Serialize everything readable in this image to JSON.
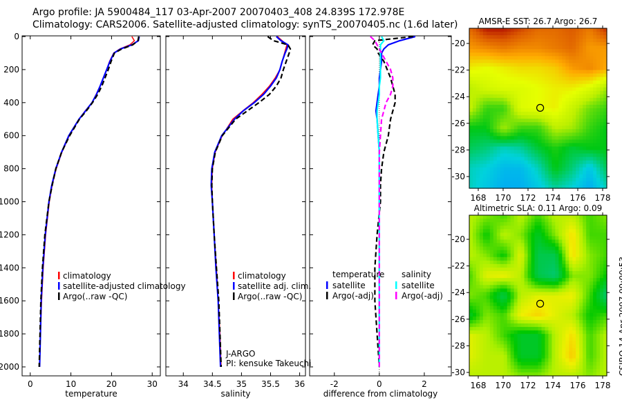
{
  "header": {
    "line1": "Argo profile: JA 5900484_117 03-Apr-2007 20070403_408 24.839S 172.978E",
    "line2": "Climatology: CARS2006. Satellite-adjusted climatology: synTS_20070405.nc (1.6d later)"
  },
  "colors": {
    "climatology": "#ff0000",
    "satellite": "#0000ff",
    "argo": "#000000",
    "sal_satellite": "#00ffff",
    "sal_argo": "#ff00ff"
  },
  "credit": {
    "project": "J-ARGO",
    "pi": "PI: kensuke Takeuchi",
    "footer": "CSIRO 14-Apr-2007 09:00:53"
  },
  "chart_data": [
    {
      "type": "line",
      "id": "temperature",
      "xlabel": "temperature",
      "ylabel": "",
      "xlim": [
        -2,
        32
      ],
      "ylim": [
        2050,
        0
      ],
      "xticks": [
        0,
        10,
        20,
        30
      ],
      "yticks": [
        0,
        200,
        400,
        600,
        800,
        1000,
        1200,
        1400,
        1600,
        1800,
        2000
      ],
      "depth": [
        0,
        25,
        50,
        75,
        100,
        150,
        200,
        250,
        300,
        350,
        400,
        450,
        500,
        600,
        700,
        800,
        900,
        1000,
        1200,
        1400,
        1600,
        1800,
        2000
      ],
      "legend": [
        "climatology",
        "satellite-adjusted climatology",
        "Argo(..raw -QC)"
      ],
      "series": [
        {
          "name": "climatology",
          "values": [
            25,
            25.6,
            24.5,
            22,
            20.5,
            19.5,
            18.8,
            18,
            17.2,
            16.2,
            15.2,
            13.5,
            12,
            9.6,
            7.8,
            6.4,
            5.4,
            4.7,
            3.8,
            3.2,
            2.8,
            2.5,
            2.3
          ]
        },
        {
          "name": "satellite-adjusted climatology",
          "values": [
            26.8,
            26.6,
            25,
            22.2,
            20.6,
            19.6,
            18.8,
            18,
            17.2,
            16.3,
            15.2,
            13.6,
            12,
            9.5,
            7.7,
            6.3,
            5.3,
            4.6,
            3.7,
            3.1,
            2.7,
            2.5,
            2.3
          ]
        },
        {
          "name": "Argo(..raw -QC)",
          "values": [
            26.7,
            26.5,
            25.2,
            22.5,
            20.7,
            19.9,
            19.2,
            18.4,
            17.6,
            16.6,
            15.3,
            13.8,
            12.1,
            9.7,
            7.7,
            6.3,
            5.4,
            4.6,
            3.6,
            3.0,
            2.6,
            2.4,
            2.2
          ]
        }
      ]
    },
    {
      "type": "line",
      "id": "salinity",
      "xlabel": "salinity",
      "xlim": [
        33.7,
        36.1
      ],
      "ylim": [
        2050,
        0
      ],
      "xticks": [
        34,
        34.5,
        35,
        35.5,
        36
      ],
      "depth": [
        0,
        25,
        50,
        75,
        100,
        150,
        200,
        250,
        300,
        350,
        400,
        450,
        500,
        600,
        700,
        800,
        900,
        1000,
        1200,
        1400,
        1600,
        1800,
        2000
      ],
      "legend": [
        "climatology",
        "satellite adj. clim.",
        "Argo(..raw -QC)"
      ],
      "series": [
        {
          "name": "climatology",
          "values": [
            35.62,
            35.7,
            35.78,
            35.76,
            35.74,
            35.7,
            35.66,
            35.58,
            35.48,
            35.35,
            35.2,
            35.02,
            34.85,
            34.67,
            34.55,
            34.5,
            34.49,
            34.5,
            34.53,
            34.57,
            34.6,
            34.63,
            34.65
          ]
        },
        {
          "name": "satellite adj. clim.",
          "values": [
            35.6,
            35.68,
            35.8,
            35.78,
            35.75,
            35.7,
            35.66,
            35.6,
            35.5,
            35.38,
            35.22,
            35.03,
            34.88,
            34.66,
            34.54,
            34.49,
            34.48,
            34.5,
            34.53,
            34.56,
            34.6,
            34.62,
            34.64
          ]
        },
        {
          "name": "Argo(..raw -QC)",
          "values": [
            35.45,
            35.55,
            35.8,
            35.84,
            35.82,
            35.77,
            35.72,
            35.68,
            35.6,
            35.48,
            35.3,
            35.1,
            34.9,
            34.67,
            34.55,
            34.5,
            34.49,
            34.5,
            34.53,
            34.57,
            34.61,
            34.63,
            34.65
          ]
        }
      ]
    },
    {
      "type": "line",
      "id": "difference",
      "xlabel": "difference from climatology",
      "xlim": [
        -3.1,
        3.2
      ],
      "ylim": [
        2050,
        0
      ],
      "xticks": [
        -2,
        0,
        2
      ],
      "depth": [
        0,
        25,
        50,
        75,
        100,
        150,
        200,
        250,
        300,
        350,
        400,
        450,
        500,
        600,
        700,
        800,
        900,
        1000,
        1200,
        1400,
        1600,
        1800,
        2000
      ],
      "legend_titles": [
        "temperature",
        "salinity"
      ],
      "legend": [
        "satellite",
        "Argo(-adj)",
        "satellite",
        "Argo(-adj)"
      ],
      "series": [
        {
          "name": "temperature satellite",
          "values": [
            1.6,
            0.9,
            0.4,
            0.2,
            0.1,
            0.1,
            0.05,
            0,
            0,
            -0.05,
            -0.1,
            -0.15,
            -0.1,
            -0.05,
            0,
            0,
            0,
            0,
            0,
            0,
            0,
            0,
            0
          ]
        },
        {
          "name": "temperature Argo(-adj)",
          "values": [
            1.5,
            -0.2,
            -0.3,
            -0.1,
            -0.05,
            0.2,
            0.35,
            0.5,
            0.6,
            0.7,
            0.7,
            0.6,
            0.5,
            0.4,
            0.2,
            0.1,
            0.05,
            0.05,
            -0.1,
            -0.2,
            -0.2,
            -0.1,
            0
          ]
        },
        {
          "name": "salinity satellite",
          "values": [
            0.1,
            0.2,
            0.05,
            0.05,
            0.05,
            0.05,
            0.05,
            0.05,
            0,
            0,
            -0.05,
            -0.1,
            -0.1,
            -0.05,
            0,
            0,
            0,
            0,
            0,
            0,
            0,
            0,
            0
          ]
        },
        {
          "name": "salinity Argo(-adj)",
          "values": [
            -0.4,
            -0.2,
            -0.1,
            0,
            0.1,
            0.3,
            0.5,
            0.6,
            0.6,
            0.5,
            0.3,
            0.2,
            0.1,
            0.05,
            0,
            0,
            0,
            0,
            0,
            0,
            0,
            0,
            0
          ]
        }
      ]
    },
    {
      "type": "heatmap",
      "id": "sst",
      "title": "AMSR-E SST: 26.7 Argo: 26.7",
      "xlim": [
        167.3,
        178.6
      ],
      "ylim": [
        -18.9,
        -30.9
      ],
      "xticks": [
        168,
        170,
        172,
        174,
        176,
        178
      ],
      "yticks": [
        -20,
        -22,
        -24,
        -26,
        -28,
        -30
      ],
      "marker": {
        "lon": 172.978,
        "lat": -24.839
      },
      "lats": [
        -19,
        -20.5,
        -22,
        -23.5,
        -25,
        -26.5,
        -28,
        -29.5,
        -31
      ],
      "lons": [
        167.3,
        168.7,
        170.1,
        171.5,
        172.9,
        174.3,
        175.7,
        177.1,
        178.6
      ],
      "values": [
        [
          27.6,
          28,
          28,
          27.8,
          27.6,
          27.6,
          27.7,
          27.5,
          27.9
        ],
        [
          27.3,
          27.4,
          27.5,
          27.4,
          27.4,
          27.5,
          27.6,
          27.3,
          27.3
        ],
        [
          26.8,
          26.7,
          26.8,
          26.9,
          26.9,
          27.0,
          27.3,
          27.4,
          27.2
        ],
        [
          26.3,
          26.5,
          26.6,
          26.6,
          26.7,
          26.8,
          26.8,
          26.6,
          26.2
        ],
        [
          26.4,
          25.8,
          25.8,
          26.6,
          26.7,
          26.8,
          26.4,
          26.0,
          25.8
        ],
        [
          25.6,
          25.6,
          26.2,
          25.8,
          25.8,
          26.3,
          26.2,
          25.8,
          25.6
        ],
        [
          25.4,
          25.3,
          25.1,
          25.2,
          25.5,
          25.7,
          25.5,
          25.6,
          25.6
        ],
        [
          25.1,
          25.0,
          24.8,
          24.8,
          25.1,
          25.6,
          25.3,
          24.9,
          25.4
        ],
        [
          25.1,
          24.9,
          24.7,
          24.7,
          24.9,
          25.2,
          25.0,
          24.7,
          25.1
        ]
      ]
    },
    {
      "type": "heatmap",
      "id": "sla",
      "title": "Altimetric SLA: 0.11 Argo: 0.09",
      "xlim": [
        167.3,
        178.6
      ],
      "ylim": [
        -18.9,
        -30.9
      ],
      "xticks": [
        168,
        170,
        172,
        174,
        176,
        178
      ],
      "yticks": [
        -20,
        -22,
        -24,
        -26,
        -28,
        -30
      ],
      "marker": {
        "lon": 172.978,
        "lat": -24.839
      },
      "lats": [
        -19,
        -20.5,
        -22,
        -23.5,
        -25,
        -26.5,
        -28,
        -29.5,
        -31
      ],
      "lons": [
        167.3,
        168.7,
        170.1,
        171.5,
        172.9,
        174.3,
        175.7,
        177.1,
        178.6
      ],
      "values": [
        [
          0.05,
          0.0,
          -0.05,
          0.05,
          -0.05,
          0.05,
          0.05,
          -0.05,
          0.0
        ],
        [
          0.05,
          -0.1,
          0.05,
          0.0,
          -0.15,
          0.0,
          0.15,
          -0.05,
          -0.05
        ],
        [
          0.05,
          0.0,
          -0.1,
          0.1,
          -0.2,
          -0.2,
          0.15,
          0.0,
          -0.05
        ],
        [
          -0.05,
          0.1,
          0.12,
          0.05,
          -0.2,
          -0.25,
          0.0,
          0.0,
          -0.1
        ],
        [
          0.0,
          -0.05,
          -0.2,
          0.05,
          0.1,
          0.1,
          0.12,
          -0.05,
          -0.25
        ],
        [
          -0.15,
          0.0,
          -0.05,
          0.12,
          0.16,
          0.1,
          0.05,
          -0.1,
          -0.05
        ],
        [
          0.1,
          0.05,
          -0.05,
          -0.15,
          -0.15,
          0.05,
          0.15,
          -0.05,
          0.05
        ],
        [
          0.1,
          0.05,
          0.05,
          -0.15,
          -0.15,
          0.05,
          0.18,
          -0.05,
          0.05
        ],
        [
          0.05,
          0.05,
          0.05,
          0.0,
          0.0,
          0.05,
          0.05,
          0.0,
          0.05
        ]
      ]
    }
  ]
}
